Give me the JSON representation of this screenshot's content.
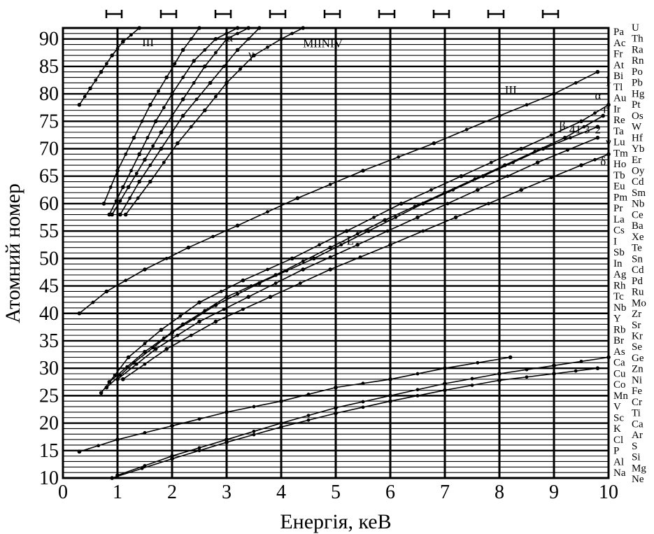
{
  "chart_data": {
    "type": "line",
    "title": "",
    "xlabel": "Енергія, кеВ",
    "ylabel": "Атомний номер",
    "xlim": [
      0,
      10
    ],
    "ylim": [
      10,
      92
    ],
    "x_ticks": [
      "0",
      "1",
      "2",
      "3",
      "4",
      "5",
      "6",
      "7",
      "8",
      "9",
      "10"
    ],
    "y_ticks": [
      "10",
      "15",
      "20",
      "25",
      "30",
      "35",
      "40",
      "45",
      "50",
      "55",
      "60",
      "65",
      "70",
      "75",
      "80",
      "85",
      "90"
    ],
    "grid": true,
    "legend": "none",
    "right_elements_left": [
      "Pa",
      "Ac",
      "Fr",
      "At",
      "Bi",
      "Tl",
      "Au",
      "Ir",
      "Re",
      "Ta",
      "Lu",
      "Tm",
      "Ho",
      "Tb",
      "Eu",
      "Pm",
      "Pr",
      "La",
      "Cs",
      "I",
      "Sb",
      "In",
      "Ag",
      "Rh",
      "Tc",
      "Nb",
      "Y",
      "Rb",
      "Br",
      "As",
      "Ca",
      "Cu",
      "Co",
      "Mn",
      "V",
      "Sc",
      "K",
      "Cl",
      "P",
      "Al",
      "Na"
    ],
    "right_elements_right": [
      "U",
      "Th",
      "Ra",
      "Rn",
      "Po",
      "Pb",
      "Hg",
      "Pt",
      "Os",
      "W",
      "Hf",
      "Yb",
      "Er",
      "Oy",
      "Cd",
      "Sm",
      "Nb",
      "Ce",
      "Ba",
      "Xe",
      "Te",
      "Sn",
      "Cd",
      "Pd",
      "Ru",
      "Mo",
      "Zr",
      "Sr",
      "Kr",
      "Se",
      "Ge",
      "Zn",
      "Ni",
      "Fe",
      "Cr",
      "Ti",
      "Ca",
      "Ar",
      "S",
      "Si",
      "Mg",
      "Ne"
    ],
    "annotations": [
      "ІІІ",
      "α",
      "γ",
      "MIINIV",
      "ІІІ",
      "1",
      "α",
      "η",
      "β",
      "41",
      "3",
      "2",
      "γ",
      "δ",
      "L",
      "I"
    ],
    "series": [
      {
        "points": [
          [
            0.3,
            78
          ],
          [
            0.5,
            81
          ],
          [
            0.7,
            84
          ],
          [
            0.9,
            87
          ],
          [
            1.1,
            89.5
          ],
          [
            1.4,
            92
          ]
        ]
      },
      {
        "points": [
          [
            0.75,
            60
          ],
          [
            1.0,
            66
          ],
          [
            1.3,
            72
          ],
          [
            1.6,
            78
          ],
          [
            1.9,
            83
          ],
          [
            2.2,
            88
          ],
          [
            2.5,
            92
          ]
        ]
      },
      {
        "points": [
          [
            0.85,
            58
          ],
          [
            1.1,
            63
          ],
          [
            1.4,
            69
          ],
          [
            1.7,
            75
          ],
          [
            2.0,
            80
          ],
          [
            2.4,
            86
          ],
          [
            2.8,
            90
          ],
          [
            3.2,
            92
          ]
        ]
      },
      {
        "points": [
          [
            0.9,
            58
          ],
          [
            1.2,
            63
          ],
          [
            1.5,
            68
          ],
          [
            1.8,
            73
          ],
          [
            2.2,
            79
          ],
          [
            2.6,
            85
          ],
          [
            3.0,
            90
          ],
          [
            3.4,
            92
          ]
        ]
      },
      {
        "points": [
          [
            1.05,
            58
          ],
          [
            1.4,
            64
          ],
          [
            1.8,
            70
          ],
          [
            2.2,
            76
          ],
          [
            2.7,
            82
          ],
          [
            3.2,
            88
          ],
          [
            3.6,
            92
          ]
        ]
      },
      {
        "points": [
          [
            1.15,
            58
          ],
          [
            1.6,
            64
          ],
          [
            2.1,
            71
          ],
          [
            2.6,
            77
          ],
          [
            3.0,
            82
          ],
          [
            3.5,
            87
          ],
          [
            4.0,
            90
          ],
          [
            4.4,
            92
          ]
        ]
      },
      {
        "points": [
          [
            0.3,
            40
          ],
          [
            0.8,
            44
          ],
          [
            1.5,
            48
          ],
          [
            2.3,
            52
          ],
          [
            3.2,
            56
          ],
          [
            4.3,
            61
          ],
          [
            5.5,
            66
          ],
          [
            6.8,
            71
          ],
          [
            8.0,
            76
          ],
          [
            9.0,
            80
          ],
          [
            9.8,
            84
          ]
        ]
      },
      {
        "points": [
          [
            0.7,
            25.5
          ],
          [
            1.2,
            32
          ],
          [
            1.8,
            37
          ],
          [
            2.5,
            42
          ],
          [
            3.3,
            46
          ],
          [
            4.2,
            50
          ],
          [
            5.2,
            55
          ],
          [
            6.2,
            60
          ],
          [
            7.3,
            65
          ],
          [
            8.4,
            70
          ],
          [
            9.5,
            75
          ],
          [
            10.0,
            78
          ]
        ]
      },
      {
        "points": [
          [
            0.8,
            26.5
          ],
          [
            1.3,
            31
          ],
          [
            2.0,
            36.5
          ],
          [
            2.8,
            41.5
          ],
          [
            3.6,
            45.5
          ],
          [
            4.6,
            50
          ],
          [
            5.6,
            55
          ],
          [
            6.6,
            60
          ],
          [
            7.7,
            65
          ],
          [
            8.8,
            70
          ],
          [
            9.8,
            74
          ]
        ]
      },
      {
        "points": [
          [
            0.85,
            27.5
          ],
          [
            1.5,
            33
          ],
          [
            2.2,
            38
          ],
          [
            3.0,
            43
          ],
          [
            3.9,
            47
          ],
          [
            4.9,
            52
          ],
          [
            5.9,
            57
          ],
          [
            7.0,
            62
          ],
          [
            8.1,
            67
          ],
          [
            9.2,
            72
          ],
          [
            9.9,
            76
          ]
        ]
      },
      {
        "points": [
          [
            1.0,
            28
          ],
          [
            1.7,
            33.5
          ],
          [
            2.5,
            38.5
          ],
          [
            3.4,
            43
          ],
          [
            4.4,
            48
          ],
          [
            5.4,
            52.5
          ],
          [
            6.5,
            57.5
          ],
          [
            7.6,
            62.5
          ],
          [
            8.7,
            67.5
          ],
          [
            9.8,
            72
          ]
        ]
      },
      {
        "points": [
          [
            1.1,
            28
          ],
          [
            1.9,
            33.5
          ],
          [
            2.8,
            38.5
          ],
          [
            3.8,
            43
          ],
          [
            4.9,
            48
          ],
          [
            6.0,
            52.5
          ],
          [
            7.2,
            57.5
          ],
          [
            8.4,
            62.5
          ],
          [
            9.5,
            67
          ],
          [
            10.0,
            69
          ]
        ]
      },
      {
        "points": [
          [
            0.3,
            14.8
          ],
          [
            1.0,
            17
          ],
          [
            2.0,
            19.5
          ],
          [
            3.0,
            22
          ],
          [
            4.0,
            24
          ],
          [
            5.0,
            26.5
          ],
          [
            6.0,
            28
          ],
          [
            7.0,
            30
          ],
          [
            8.2,
            32
          ]
        ]
      },
      {
        "points": [
          [
            1.0,
            10.5
          ],
          [
            2.0,
            14
          ],
          [
            3.0,
            17
          ],
          [
            4.0,
            20
          ],
          [
            5.0,
            22.8
          ],
          [
            6.0,
            25
          ],
          [
            7.0,
            27.2
          ],
          [
            8.0,
            29
          ],
          [
            9.0,
            30.5
          ],
          [
            10.0,
            32
          ]
        ]
      },
      {
        "points": [
          [
            0.9,
            10
          ],
          [
            2.0,
            13.5
          ],
          [
            3.0,
            16.5
          ],
          [
            4.0,
            19.3
          ],
          [
            5.0,
            21.8
          ],
          [
            6.0,
            24
          ],
          [
            7.0,
            26
          ],
          [
            8.0,
            27.8
          ],
          [
            9.0,
            29
          ],
          [
            9.8,
            30
          ]
        ]
      }
    ]
  }
}
